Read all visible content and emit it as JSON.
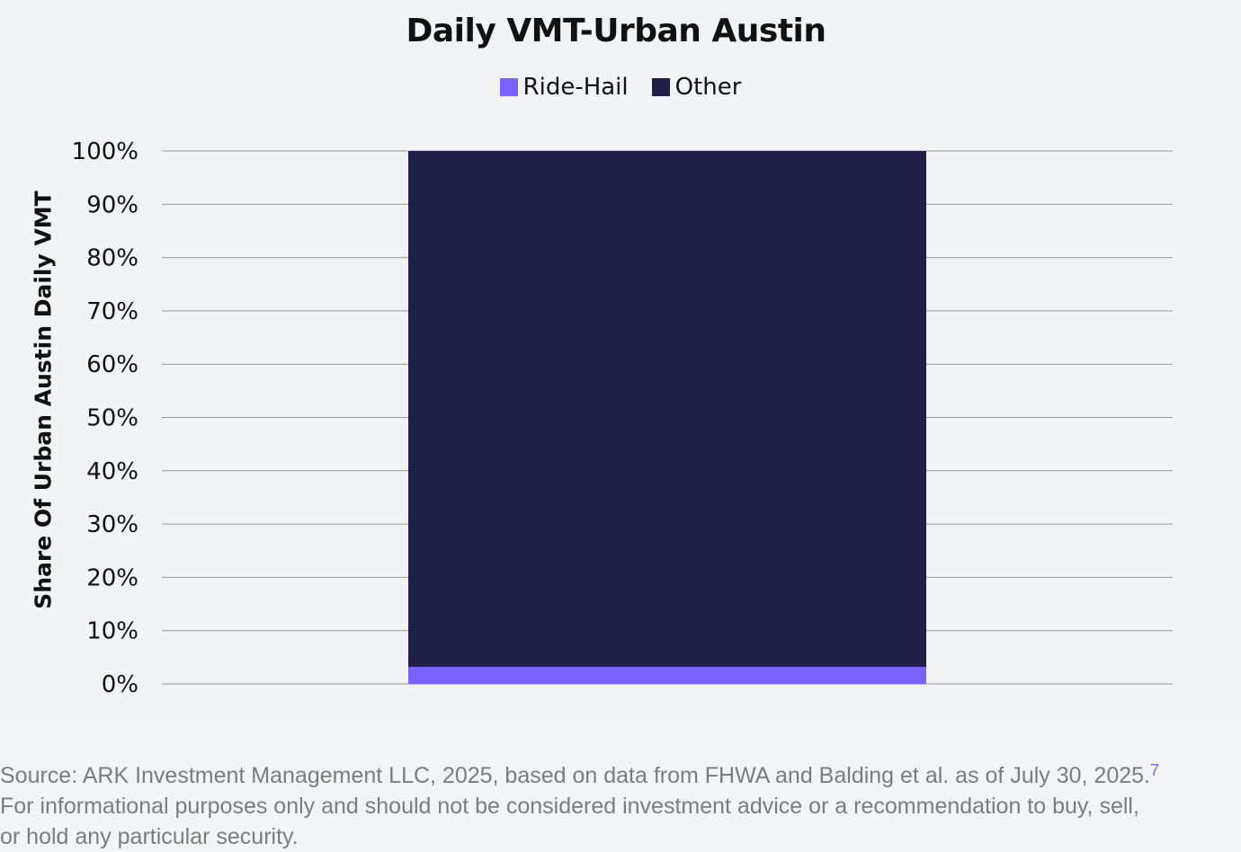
{
  "chart_data": {
    "type": "bar",
    "stacked": true,
    "title": "Daily VMT-Urban Austin",
    "ylabel": "Share Of Urban Austin Daily VMT",
    "xlabel": "",
    "ylim": [
      0,
      100
    ],
    "yticks": [
      "0%",
      "10%",
      "20%",
      "30%",
      "40%",
      "50%",
      "60%",
      "70%",
      "80%",
      "90%",
      "100%"
    ],
    "categories": [
      ""
    ],
    "series": [
      {
        "name": "Ride-Hail",
        "values": [
          3.2
        ],
        "color": "#7b61ff"
      },
      {
        "name": "Other",
        "values": [
          96.8
        ],
        "color": "#1f1f47"
      }
    ],
    "grid": true,
    "legend_position": "top-center"
  },
  "footer": {
    "line1": "Source: ARK Investment Management LLC, 2025, based on data from FHWA and Balding et al. as of July 30, 2025.",
    "footnote_mark": "7",
    "line2": "For informational purposes only and should not be considered investment advice or a recommendation to buy, sell,",
    "line3": "or hold any particular security."
  }
}
